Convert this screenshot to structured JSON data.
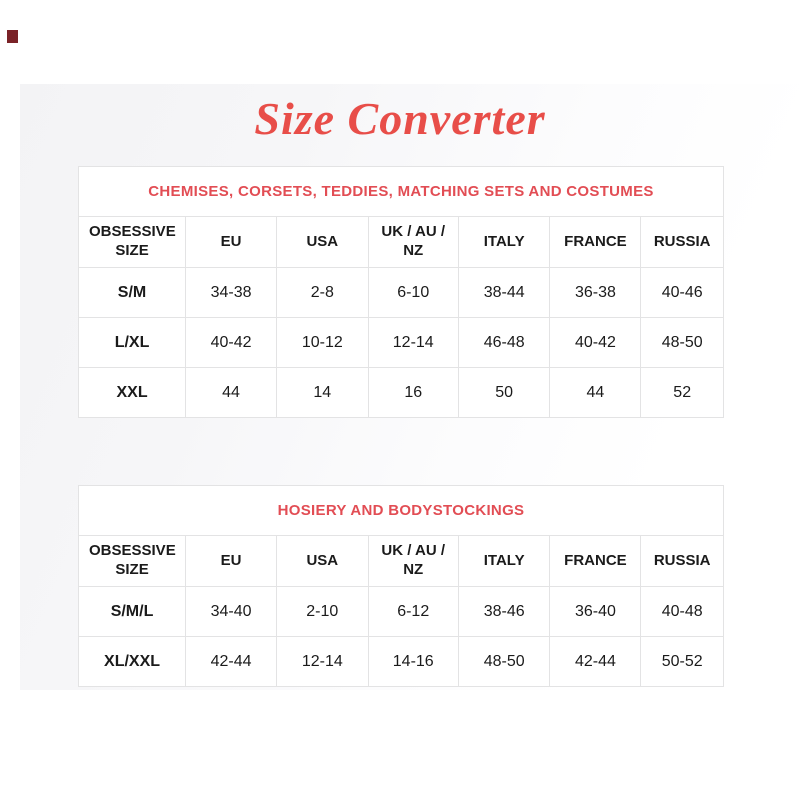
{
  "page": {
    "title": "Size Converter",
    "title_color": "#e84e49",
    "accent_color": "#e24d54",
    "logo_color": "#7a2227"
  },
  "tables": [
    {
      "caption": "CHEMISES, CORSETS, TEDDIES, MATCHING SETS AND COSTUMES",
      "columns": [
        "OBSESSIVE SIZE",
        "EU",
        "USA",
        "UK / AU / NZ",
        "ITALY",
        "FRANCE",
        "RUSSIA"
      ],
      "rows": [
        [
          "S/M",
          "34-38",
          "2-8",
          "6-10",
          "38-44",
          "36-38",
          "40-46"
        ],
        [
          "L/XL",
          "40-42",
          "10-12",
          "12-14",
          "46-48",
          "40-42",
          "48-50"
        ],
        [
          "XXL",
          "44",
          "14",
          "16",
          "50",
          "44",
          "52"
        ]
      ]
    },
    {
      "caption": "HOSIERY AND BODYSTOCKINGS",
      "columns": [
        "OBSESSIVE SIZE",
        "EU",
        "USA",
        "UK / AU / NZ",
        "ITALY",
        "FRANCE",
        "RUSSIA"
      ],
      "rows": [
        [
          "S/M/L",
          "34-40",
          "2-10",
          "6-12",
          "38-46",
          "36-40",
          "40-48"
        ],
        [
          "XL/XXL",
          "42-44",
          "12-14",
          "14-16",
          "48-50",
          "42-44",
          "50-52"
        ]
      ]
    }
  ],
  "layout": {
    "column_widths_percent": [
      16.6,
      14.1,
      14.2,
      14.0,
      14.2,
      14.1,
      12.8
    ]
  }
}
